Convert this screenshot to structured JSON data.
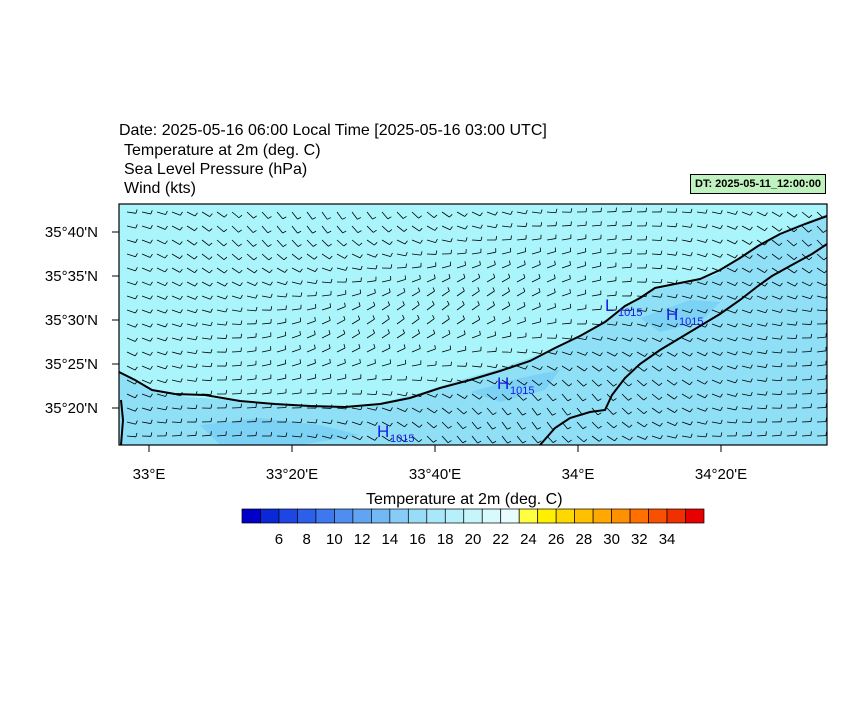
{
  "header": {
    "title": "Date: 2025-05-16  06:00 Local Time [2025-05-16  03:00 UTC]",
    "variables": [
      "Temperature at 2m   (deg. C)",
      "Sea Level Pressure   (hPa)",
      "Wind   (kts)"
    ],
    "dt_label": "DT: 2025-05-11_12:00:00"
  },
  "map": {
    "lat_labels": [
      "35°40'N",
      "35°35'N",
      "35°30'N",
      "35°25'N",
      "35°20'N"
    ],
    "lon_labels": [
      "33°E",
      "33°20'E",
      "33°40'E",
      "34°E",
      "34°20'E"
    ],
    "pressure_centers": [
      {
        "type": "L",
        "value": "1015"
      },
      {
        "type": "H",
        "value": "1015"
      },
      {
        "type": "H",
        "value": "1015"
      },
      {
        "type": "H",
        "value": "1015"
      }
    ],
    "colors": {
      "sea": "#aaf5fb",
      "coastal": "#8fe0f7",
      "land_cool": "#6fc8f1",
      "line": "#000000",
      "highs_lows": "#1a1ae6"
    }
  },
  "colorbar": {
    "title": "Temperature at 2m  (deg. C)",
    "tick_labels": [
      "6",
      "8",
      "10",
      "12",
      "14",
      "16",
      "18",
      "20",
      "22",
      "24",
      "26",
      "28",
      "30",
      "32",
      "34"
    ],
    "colors": [
      "#0000c8",
      "#0a28d8",
      "#1e46e4",
      "#2c60ea",
      "#3e78ee",
      "#4e8ef0",
      "#60a4f2",
      "#72b8f4",
      "#86ccf6",
      "#98dcf8",
      "#a8e8fa",
      "#b6f0fb",
      "#c6f6fc",
      "#d8fafd",
      "#e8fcfe",
      "#fffe40",
      "#fff000",
      "#ffd800",
      "#ffc000",
      "#ffa800",
      "#ff9000",
      "#ff7000",
      "#f85000",
      "#f03000",
      "#e80000"
    ]
  }
}
